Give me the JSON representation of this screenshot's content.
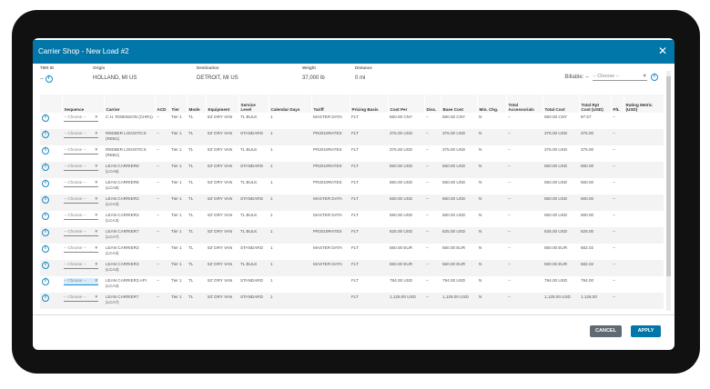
{
  "modal": {
    "title": "Carrier Shop - New Load #2",
    "close_icon": "close-icon"
  },
  "meta": {
    "tms_id": {
      "label": "TMS ID",
      "value": "--"
    },
    "origin": {
      "label": "Origin",
      "value": "HOLLAND, MI US"
    },
    "destination": {
      "label": "Destination",
      "value": "DETROIT, MI US"
    },
    "weight": {
      "label": "Weight",
      "value": "37,000 lb"
    },
    "distance": {
      "label": "Distance",
      "value": "0 mi"
    },
    "billable": {
      "label": "Billable: --",
      "select": "-- Choose --"
    }
  },
  "columns": [
    "",
    "Sequence",
    "Carrier",
    "ACD",
    "Tier",
    "Mode",
    "Equipment",
    "Service Level",
    "Calendar Days",
    "Tariff",
    "Pricing Basis",
    "Cost Per",
    "Disc.",
    "Base Cost",
    "Min. Chg.",
    "Total Accessorials",
    "Total Cost",
    "Total Rpt Cost (USD)",
    "P/L",
    "Rating Metric (USD)"
  ],
  "sequence_placeholder": "-- Choose --",
  "rows": [
    [
      "C.H. ROBINSON (CHR1)",
      "--",
      "Tier 1",
      "TL",
      "53' DRY VAN",
      "TL BULK",
      "1",
      "MASTER DATA",
      "FLT",
      "560.00 CNY",
      "--",
      "560.00 CNY",
      "N",
      "--",
      "560.00 CNY",
      "87.57",
      "--",
      ""
    ],
    [
      "REEBER LOGISTICS (REB1)",
      "--",
      "Tier 1",
      "TL",
      "53' DRY VAN",
      "STANDARD",
      "1",
      "PR2019RATES",
      "FLT",
      "375.00 USD",
      "--",
      "375.00 USD",
      "N",
      "--",
      "375.00 USD",
      "375.00",
      "--",
      ""
    ],
    [
      "REEBER LOGISTICS (REB1)",
      "--",
      "Tier 1",
      "TL",
      "53' DRY VAN",
      "TL BULK",
      "1",
      "PR2019RATES",
      "FLT",
      "375.00 USD",
      "--",
      "375.00 USD",
      "N",
      "--",
      "375.00 USD",
      "375.00",
      "--",
      ""
    ],
    [
      "LEAN CARRIER8 (LCA8)",
      "--",
      "Tier 1",
      "TL",
      "53' DRY VAN",
      "STANDARD",
      "1",
      "PR2019RATES",
      "FLT",
      "550.00 USD",
      "--",
      "550.00 USD",
      "N",
      "--",
      "550.00 USD",
      "550.00",
      "--",
      ""
    ],
    [
      "LEAN CARRIER8 (LCA8)",
      "--",
      "Tier 1",
      "TL",
      "53' DRY VAN",
      "TL BULK",
      "1",
      "PR2019RATES",
      "FLT",
      "550.00 USD",
      "--",
      "550.00 USD",
      "N",
      "--",
      "550.00 USD",
      "550.00",
      "--",
      ""
    ],
    [
      "LEAN CARRIER3 (LCA3)",
      "--",
      "Tier 1",
      "TL",
      "53' DRY VAN",
      "STANDARD",
      "1",
      "MASTER DATA",
      "FLT",
      "560.00 USD",
      "--",
      "560.00 USD",
      "N",
      "--",
      "560.00 USD",
      "560.00",
      "--",
      ""
    ],
    [
      "LEAN CARRIER3 (LCA3)",
      "--",
      "Tier 1",
      "TL",
      "53' DRY VAN",
      "TL BULK",
      "1",
      "MASTER DATA",
      "FLT",
      "560.00 USD",
      "--",
      "560.00 USD",
      "N",
      "--",
      "560.00 USD",
      "560.00",
      "--",
      ""
    ],
    [
      "LEAN CARRIER7 (LCA7)",
      "--",
      "Tier 1",
      "TL",
      "53' DRY VAN",
      "TL BULK",
      "1",
      "PR2019RATES",
      "FLT",
      "625.00 USD",
      "--",
      "625.00 USD",
      "N",
      "--",
      "625.00 USD",
      "625.00",
      "--",
      ""
    ],
    [
      "LEAN CARRIER3 (LCA3)",
      "--",
      "Tier 1",
      "TL",
      "53' DRY VAN",
      "STANDARD",
      "1",
      "MASTER DATA",
      "FLT",
      "560.00 EUR",
      "--",
      "560.00 EUR",
      "N",
      "--",
      "560.00 EUR",
      "682.02",
      "--",
      ""
    ],
    [
      "LEAN CARRIER3 (LCA3)",
      "--",
      "Tier 1",
      "TL",
      "53' DRY VAN",
      "TL BULK",
      "1",
      "MASTER DATA",
      "FLT",
      "560.00 EUR",
      "--",
      "560.00 EUR",
      "N",
      "--",
      "560.00 EUR",
      "682.02",
      "--",
      ""
    ],
    [
      "LEAN CARRIER3 API (LCA3)",
      "--",
      "Tier 1",
      "TL",
      "53' DRY VAN",
      "STANDARD",
      "1",
      "",
      "FLT",
      "794.00 USD",
      "--",
      "794.00 USD",
      "N",
      "--",
      "794.00 USD",
      "794.00",
      "--",
      ""
    ],
    [
      "LEAN CARRIER7 (LCA7)",
      "--",
      "Tier 1",
      "TL",
      "53' DRY VAN",
      "STANDARD",
      "1",
      "",
      "FLT",
      "1,128.00 USD",
      "--",
      "1,128.00 USD",
      "N",
      "--",
      "1,128.00 USD",
      "1,128.00",
      "--",
      ""
    ]
  ],
  "footer": {
    "cancel": "CANCEL",
    "apply": "APPLY"
  },
  "colors": {
    "header": "#0077a8",
    "cancel": "#5f6b73",
    "apply": "#0077a8",
    "info": "#1a8ac6"
  }
}
